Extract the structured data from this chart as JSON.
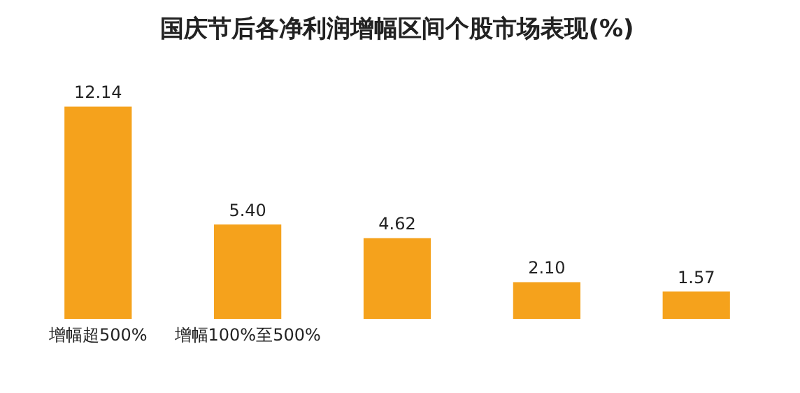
{
  "chart_data": {
    "type": "bar",
    "title": "国庆节后各净利润增幅区间个股市场表现(%)",
    "categories": [
      "增幅超500%",
      "增幅100%至500%",
      null,
      null,
      null
    ],
    "values": [
      12.14,
      5.4,
      4.62,
      2.1,
      1.57
    ],
    "value_labels": [
      "12.14",
      "5.40",
      "4.62",
      "2.10",
      "1.57"
    ],
    "color": "#f5a21c"
  }
}
